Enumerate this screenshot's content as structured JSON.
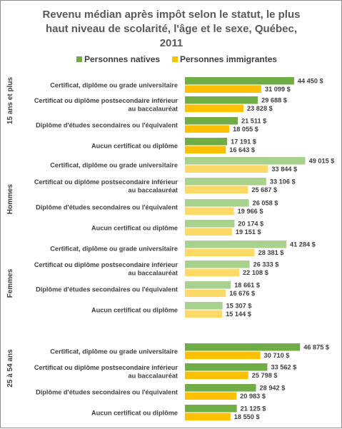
{
  "chart_data": {
    "type": "bar",
    "orientation": "horizontal",
    "title": [
      "Revenu médian après impôt selon le statut, le plus",
      "haut niveau de scolarité, l'âge et le sexe, Québec,",
      "2011"
    ],
    "legend": {
      "placement": "top",
      "entries": [
        {
          "label": "Personnes natives",
          "color": "#70ad47"
        },
        {
          "label": "Personnes immigrantes",
          "color": "#ffc000"
        }
      ]
    },
    "value_suffix": " $",
    "xlim": [
      0,
      50000
    ],
    "grid": false,
    "categories": [
      [
        "Certificat, diplôme ou grade universitaire"
      ],
      [
        "Certificat ou diplôme postsecondaire inférieur",
        "au baccalauréat"
      ],
      [
        "Diplôme d'études secondaires ou l'équivalent"
      ],
      [
        "Aucun certificat ou diplôme"
      ]
    ],
    "groups": [
      {
        "label": "15 ans et plus",
        "colors": {
          "native": "#70ad47",
          "immigrant": "#ffc000"
        },
        "native": [
          44450,
          29688,
          21511,
          17191
        ],
        "immigrant": [
          31099,
          23828,
          18055,
          16643
        ],
        "native_labels": [
          "44 450  $",
          "29 688  $",
          "21 511  $",
          "17 191  $"
        ],
        "immigrant_labels": [
          "31 099  $",
          "23 828  $",
          "18 055  $",
          "16 643  $"
        ]
      },
      {
        "label": "Hommes",
        "colors": {
          "native": "#a9d18e",
          "immigrant": "#ffd966"
        },
        "native": [
          49015,
          33106,
          26058,
          20174
        ],
        "immigrant": [
          33844,
          25687,
          19966,
          19151
        ],
        "native_labels": [
          "49 015  $",
          "33 106  $",
          "26 058  $",
          "20 174  $"
        ],
        "immigrant_labels": [
          "33 844  $",
          "25 687  $",
          "19 966  $",
          "19 151  $"
        ]
      },
      {
        "label": "Femmes",
        "colors": {
          "native": "#a9d18e",
          "immigrant": "#ffd966"
        },
        "native": [
          41284,
          26333,
          18661,
          15307
        ],
        "immigrant": [
          28381,
          22108,
          16676,
          15144
        ],
        "native_labels": [
          "41 284  $",
          "26 333  $",
          "18 661  $",
          "15 307  $"
        ],
        "immigrant_labels": [
          "28 381  $",
          "22 108  $",
          "16 676  $",
          "15 144  $"
        ]
      },
      {
        "label": "25 à 54 ans",
        "colors": {
          "native": "#70ad47",
          "immigrant": "#ffc000"
        },
        "native": [
          46875,
          33562,
          28942,
          21125
        ],
        "immigrant": [
          30710,
          25798,
          20983,
          18550
        ],
        "native_labels": [
          "46 875  $",
          "33 562  $",
          "28 942  $",
          "21 125  $"
        ],
        "immigrant_labels": [
          "30 710  $",
          "25 798  $",
          "20 983  $",
          "18 550  $"
        ]
      }
    ]
  }
}
